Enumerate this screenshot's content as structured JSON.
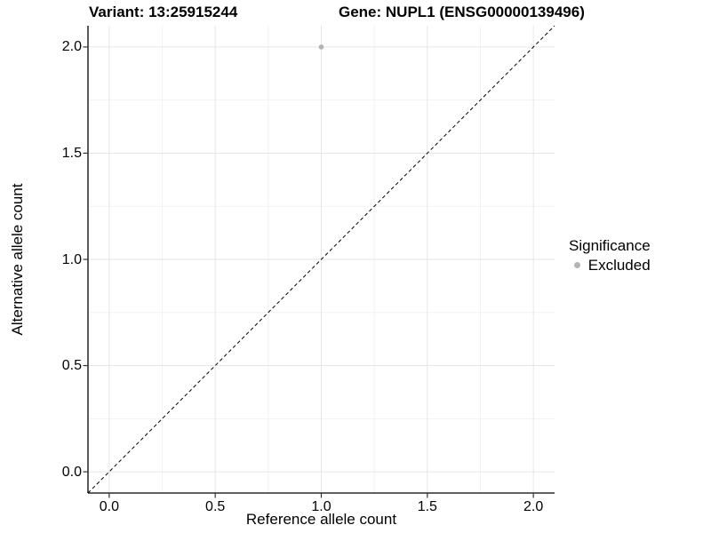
{
  "chart_data": {
    "type": "scatter",
    "titles": {
      "left": "Variant: 13:25915244",
      "right": "Gene: NUPL1 (ENSG00000139496)"
    },
    "xlabel": "Reference allele count",
    "ylabel": "Alternative allele count",
    "xlim": [
      -0.1,
      2.1
    ],
    "ylim": [
      -0.1,
      2.1
    ],
    "x_ticks": [
      0,
      0.5,
      1,
      1.5,
      2
    ],
    "x_tick_labels": [
      "0.0",
      "0.5",
      "1.0",
      "1.5",
      "2.0"
    ],
    "y_ticks": [
      0,
      0.5,
      1,
      1.5,
      2
    ],
    "y_tick_labels": [
      "0.0",
      "0.5",
      "1.0",
      "1.5",
      "2.0"
    ],
    "x_minor_ticks": [
      0.25,
      0.75,
      1.25,
      1.75
    ],
    "y_minor_ticks": [
      0.25,
      0.75,
      1.25,
      1.75
    ],
    "grid": "major+minor",
    "identity_line": {
      "style": "dashed",
      "from": [
        -0.1,
        -0.1
      ],
      "to": [
        2.1,
        2.1
      ],
      "color": "#000000"
    },
    "series": [
      {
        "name": "Excluded",
        "color": "#b3b3b3",
        "marker": "circle",
        "points": [
          [
            1.0,
            2.0
          ]
        ]
      }
    ],
    "legend": {
      "title": "Significance",
      "position": "right",
      "items": [
        {
          "label": "Excluded",
          "color": "#b3b3b3",
          "marker": "circle"
        }
      ]
    },
    "colors": {
      "grid_major": "#e6e6e6",
      "grid_minor": "#f2f2f2",
      "axis_line": "#000000",
      "tick_mark": "#333333",
      "text": "#000000",
      "background": "#ffffff"
    }
  }
}
